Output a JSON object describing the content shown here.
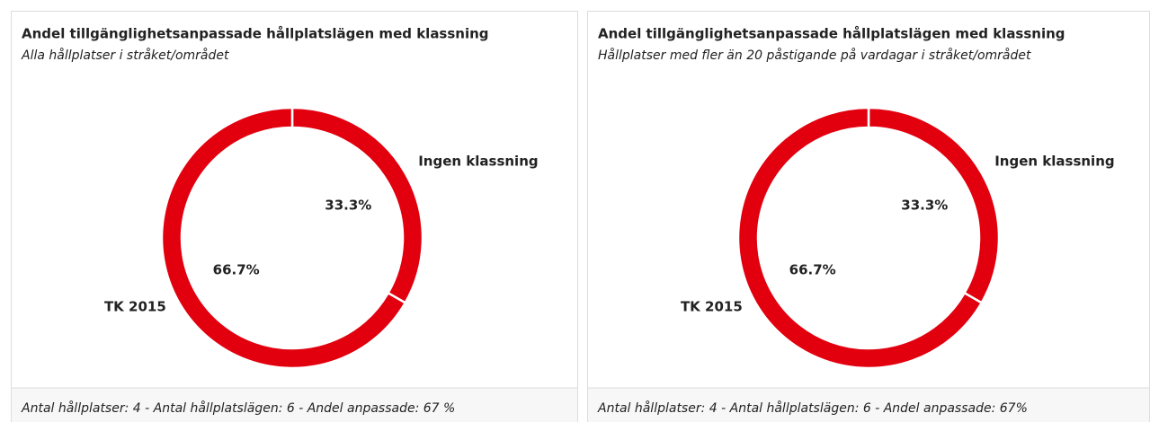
{
  "chart_data": [
    {
      "type": "pie",
      "donut": true,
      "title": "Andel tillgänglighetsanpassade hållplatslägen med klassning",
      "subtitle": "Alla hållplatser i stråket/området",
      "categories": [
        "Ingen klassning",
        "TK 2015"
      ],
      "values": [
        33.3,
        66.7
      ],
      "value_labels": [
        "33.3%",
        "66.7%"
      ],
      "colors": [
        "#e2000f",
        "#e2000f"
      ],
      "footer": "Antal hållplatser: 4 - Antal hållplatslägen: 6 - Andel anpassade: 67 %"
    },
    {
      "type": "pie",
      "donut": true,
      "title": "Andel tillgänglighetsanpassade hållplatslägen med klassning",
      "subtitle": "Hållplatser med fler än 20 påstigande på vardagar i stråket/området",
      "categories": [
        "Ingen klassning",
        "TK 2015"
      ],
      "values": [
        33.3,
        66.7
      ],
      "value_labels": [
        "33.3%",
        "66.7%"
      ],
      "colors": [
        "#e2000f",
        "#e2000f"
      ],
      "footer": "Antal hållplatser: 4 - Antal hållplatslägen: 6 - Andel anpassade: 67%"
    }
  ]
}
